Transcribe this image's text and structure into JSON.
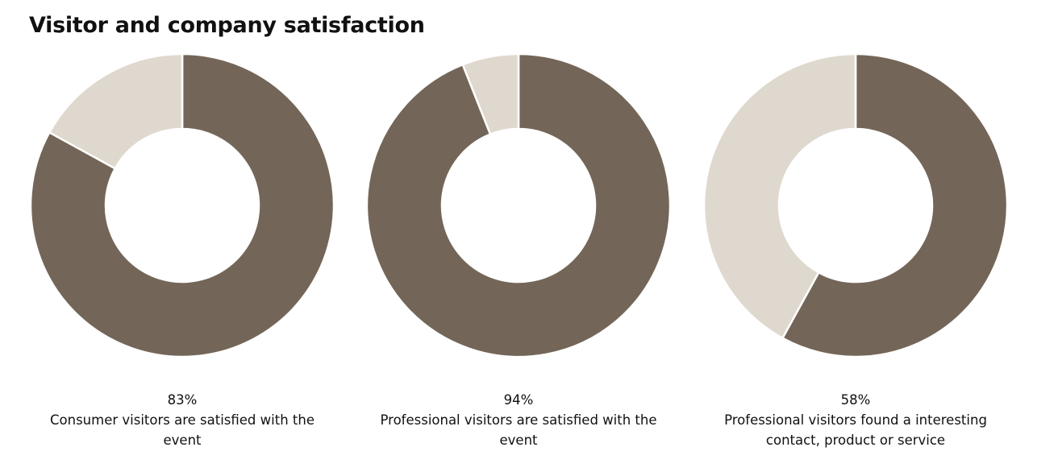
{
  "title": "Visitor and company satisfaction",
  "chart_data": [
    {
      "type": "donut",
      "values": [
        83,
        17
      ],
      "value_labels": [
        "83%",
        null
      ],
      "colors": [
        "#736658",
        "#dfd8ce"
      ],
      "caption": "Consumer visitors are satisfied with the event"
    },
    {
      "type": "donut",
      "values": [
        94,
        6
      ],
      "value_labels": [
        "94%",
        null
      ],
      "colors": [
        "#736658",
        "#dfd8ce"
      ],
      "caption": "Professional visitors are satisfied with the event"
    },
    {
      "type": "donut",
      "values": [
        58,
        42
      ],
      "value_labels": [
        "58%",
        null
      ],
      "colors": [
        "#736658",
        "#dfd8ce"
      ],
      "caption": "Professional visitors found a interesting contact, product or service"
    }
  ]
}
